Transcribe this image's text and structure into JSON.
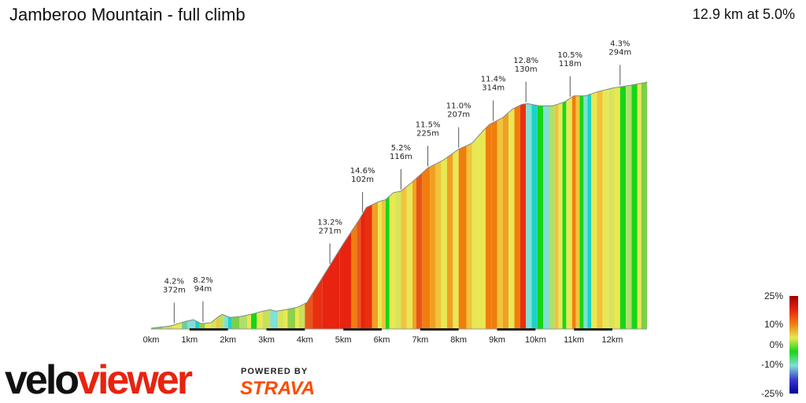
{
  "header": {
    "title": "Jamberoo Mountain - full climb",
    "summary": "12.9 km at 5.0%"
  },
  "branding": {
    "logo_text": "veloviewer",
    "powered_by": "POWERED BY",
    "strava": "STRAVA"
  },
  "chart_data": {
    "type": "area",
    "title": "Jamberoo Mountain - full climb",
    "xlabel": "",
    "ylabel": "",
    "x_unit": "km",
    "xlim": [
      0,
      12.9
    ],
    "x_ticks": [
      "0km",
      "1km",
      "2km",
      "3km",
      "4km",
      "5km",
      "6km",
      "7km",
      "8km",
      "9km",
      "10km",
      "11km",
      "12km"
    ],
    "profile": [
      [
        0,
        1
      ],
      [
        0.5,
        4
      ],
      [
        0.9,
        10
      ],
      [
        1.1,
        12
      ],
      [
        1.3,
        7
      ],
      [
        1.55,
        8
      ],
      [
        1.75,
        16
      ],
      [
        1.85,
        19
      ],
      [
        2.05,
        15
      ],
      [
        2.3,
        16
      ],
      [
        2.6,
        19
      ],
      [
        2.9,
        23
      ],
      [
        3.1,
        25
      ],
      [
        3.25,
        23
      ],
      [
        3.5,
        25
      ],
      [
        3.8,
        28
      ],
      [
        4.05,
        34
      ],
      [
        4.3,
        54
      ],
      [
        4.6,
        78
      ],
      [
        5.0,
        110
      ],
      [
        5.4,
        140
      ],
      [
        5.6,
        157
      ],
      [
        5.9,
        164
      ],
      [
        6.1,
        167
      ],
      [
        6.3,
        176
      ],
      [
        6.5,
        178
      ],
      [
        6.8,
        190
      ],
      [
        7.2,
        208
      ],
      [
        7.6,
        218
      ],
      [
        8.0,
        232
      ],
      [
        8.35,
        240
      ],
      [
        8.6,
        254
      ],
      [
        8.8,
        264
      ],
      [
        9.15,
        273
      ],
      [
        9.4,
        284
      ],
      [
        9.65,
        290
      ],
      [
        9.8,
        291
      ],
      [
        10.1,
        288
      ],
      [
        10.45,
        288
      ],
      [
        10.75,
        293
      ],
      [
        11.0,
        301
      ],
      [
        11.3,
        301
      ],
      [
        11.6,
        306
      ],
      [
        12.0,
        311
      ],
      [
        12.4,
        314
      ],
      [
        12.85,
        318
      ],
      [
        12.9,
        319
      ]
    ],
    "gradient_scale": {
      "ticks": [
        "25%",
        "10%",
        "0%",
        "-10%",
        "-25%"
      ],
      "colors": [
        "#a00000",
        "#e8230f",
        "#f07d0d",
        "#e8e853",
        "#16d616",
        "#7fe0d6",
        "#3a3ad0",
        "#0000a0"
      ]
    },
    "annotations": [
      {
        "km": 0.6,
        "grade": "4.2%",
        "length": "372m"
      },
      {
        "km": 1.35,
        "grade": "8.2%",
        "length": "94m"
      },
      {
        "km": 4.65,
        "grade": "13.2%",
        "length": "271m"
      },
      {
        "km": 5.5,
        "grade": "14.6%",
        "length": "102m"
      },
      {
        "km": 6.5,
        "grade": "5.2%",
        "length": "116m"
      },
      {
        "km": 7.2,
        "grade": "11.5%",
        "length": "225m"
      },
      {
        "km": 8.0,
        "grade": "11.0%",
        "length": "207m"
      },
      {
        "km": 8.9,
        "grade": "11.4%",
        "length": "314m"
      },
      {
        "km": 9.75,
        "grade": "12.8%",
        "length": "130m"
      },
      {
        "km": 10.9,
        "grade": "10.5%",
        "length": "118m"
      },
      {
        "km": 12.2,
        "grade": "4.3%",
        "length": "294m"
      }
    ],
    "bands": [
      {
        "end": 0.3,
        "color": "#7ccf4a"
      },
      {
        "end": 0.55,
        "color": "#c6e05a"
      },
      {
        "end": 0.8,
        "color": "#e8e853"
      },
      {
        "end": 0.95,
        "color": "#6ccf9a"
      },
      {
        "end": 1.15,
        "color": "#7fe0d6"
      },
      {
        "end": 1.25,
        "color": "#1ad3c8"
      },
      {
        "end": 1.4,
        "color": "#8fd14a"
      },
      {
        "end": 1.55,
        "color": "#e8e853"
      },
      {
        "end": 1.7,
        "color": "#d8e45a"
      },
      {
        "end": 1.78,
        "color": "#f0c43a"
      },
      {
        "end": 1.9,
        "color": "#b8e060"
      },
      {
        "end": 2.0,
        "color": "#7fe0d6"
      },
      {
        "end": 2.1,
        "color": "#1ad3c8"
      },
      {
        "end": 2.3,
        "color": "#7ccf4a"
      },
      {
        "end": 2.5,
        "color": "#aee06a"
      },
      {
        "end": 2.6,
        "color": "#e8e853"
      },
      {
        "end": 2.75,
        "color": "#16d616"
      },
      {
        "end": 2.9,
        "color": "#e8e853"
      },
      {
        "end": 3.1,
        "color": "#c6e05a"
      },
      {
        "end": 3.3,
        "color": "#7fe0d6"
      },
      {
        "end": 3.45,
        "color": "#d8e45a"
      },
      {
        "end": 3.55,
        "color": "#e8e853"
      },
      {
        "end": 3.75,
        "color": "#8fd14a"
      },
      {
        "end": 3.85,
        "color": "#e8e853"
      },
      {
        "end": 4.0,
        "color": "#c8e05a"
      },
      {
        "end": 4.2,
        "color": "#e8551a"
      },
      {
        "end": 4.45,
        "color": "#e8300f"
      },
      {
        "end": 4.7,
        "color": "#e8230f"
      },
      {
        "end": 4.9,
        "color": "#e8230f"
      },
      {
        "end": 5.2,
        "color": "#e8230f"
      },
      {
        "end": 5.35,
        "color": "#f07d0d"
      },
      {
        "end": 5.45,
        "color": "#e8551a"
      },
      {
        "end": 5.55,
        "color": "#e8230f"
      },
      {
        "end": 5.75,
        "color": "#e8300f"
      },
      {
        "end": 5.9,
        "color": "#f0a020"
      },
      {
        "end": 6.0,
        "color": "#e8e853"
      },
      {
        "end": 6.1,
        "color": "#f0c43a"
      },
      {
        "end": 6.2,
        "color": "#16d616"
      },
      {
        "end": 6.35,
        "color": "#e8e853"
      },
      {
        "end": 6.5,
        "color": "#d8e45a"
      },
      {
        "end": 6.65,
        "color": "#f0c43a"
      },
      {
        "end": 6.8,
        "color": "#e8e853"
      },
      {
        "end": 6.9,
        "color": "#f0a020"
      },
      {
        "end": 7.05,
        "color": "#e8551a"
      },
      {
        "end": 7.25,
        "color": "#f07d0d"
      },
      {
        "end": 7.4,
        "color": "#f0a020"
      },
      {
        "end": 7.55,
        "color": "#f0c43a"
      },
      {
        "end": 7.7,
        "color": "#e8e853"
      },
      {
        "end": 7.85,
        "color": "#f0a020"
      },
      {
        "end": 8.0,
        "color": "#e8e853"
      },
      {
        "end": 8.2,
        "color": "#f07d0d"
      },
      {
        "end": 8.35,
        "color": "#f0c43a"
      },
      {
        "end": 8.5,
        "color": "#e8e853"
      },
      {
        "end": 8.7,
        "color": "#e8e853"
      },
      {
        "end": 8.85,
        "color": "#f07d0d"
      },
      {
        "end": 9.0,
        "color": "#f07d0d"
      },
      {
        "end": 9.15,
        "color": "#f0c43a"
      },
      {
        "end": 9.3,
        "color": "#f0a020"
      },
      {
        "end": 9.45,
        "color": "#e8e853"
      },
      {
        "end": 9.6,
        "color": "#f07d0d"
      },
      {
        "end": 9.75,
        "color": "#e8300f"
      },
      {
        "end": 9.9,
        "color": "#7fe0d6"
      },
      {
        "end": 10.05,
        "color": "#1ad3c8"
      },
      {
        "end": 10.2,
        "color": "#16d616"
      },
      {
        "end": 10.35,
        "color": "#7fe0d6"
      },
      {
        "end": 10.5,
        "color": "#aee06a"
      },
      {
        "end": 10.6,
        "color": "#f0c43a"
      },
      {
        "end": 10.7,
        "color": "#e8e853"
      },
      {
        "end": 10.8,
        "color": "#16d616"
      },
      {
        "end": 10.95,
        "color": "#e8e853"
      },
      {
        "end": 11.05,
        "color": "#f07d0d"
      },
      {
        "end": 11.15,
        "color": "#f0c43a"
      },
      {
        "end": 11.25,
        "color": "#16d616"
      },
      {
        "end": 11.35,
        "color": "#7fe0d6"
      },
      {
        "end": 11.45,
        "color": "#1ad3c8"
      },
      {
        "end": 11.6,
        "color": "#e8e853"
      },
      {
        "end": 11.75,
        "color": "#f0c43a"
      },
      {
        "end": 11.9,
        "color": "#e8e853"
      },
      {
        "end": 12.05,
        "color": "#d8e45a"
      },
      {
        "end": 12.2,
        "color": "#e8e853"
      },
      {
        "end": 12.35,
        "color": "#16d616"
      },
      {
        "end": 12.5,
        "color": "#aee06a"
      },
      {
        "end": 12.65,
        "color": "#16d616"
      },
      {
        "end": 12.75,
        "color": "#e8e853"
      },
      {
        "end": 12.9,
        "color": "#7ccf4a"
      }
    ]
  }
}
